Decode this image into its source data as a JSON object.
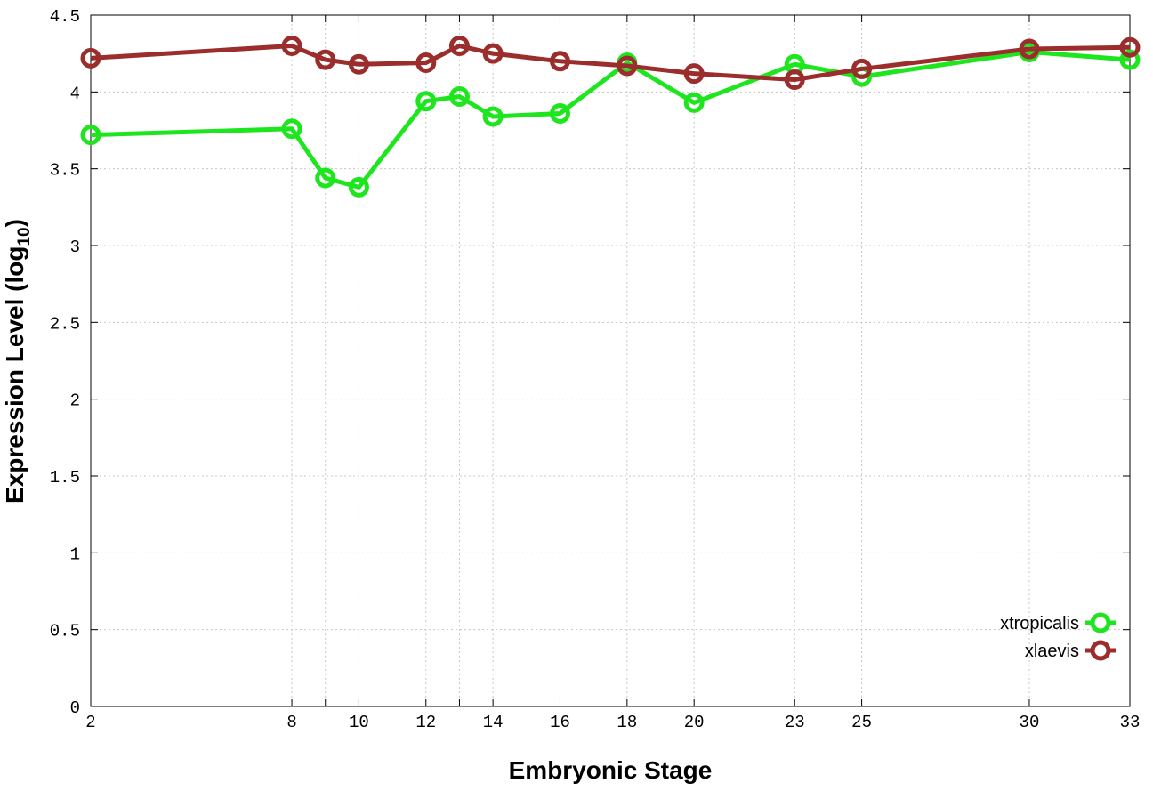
{
  "chart_data": {
    "type": "line",
    "xlabel": "Embryonic Stage",
    "ylabel_main": "Expression Level (log",
    "ylabel_sub": "10",
    "ylabel_close": ")",
    "x_categories": [
      "2",
      "8",
      "9",
      "10",
      "12",
      "13",
      "14",
      "16",
      "18",
      "20",
      "23",
      "25",
      "30",
      "33"
    ],
    "x_tick_labels": [
      "2",
      "8",
      "10",
      "12",
      "14",
      "16",
      "18",
      "20",
      "23",
      "25",
      "30",
      "33"
    ],
    "xlim": [
      2,
      33
    ],
    "ylim": [
      0,
      4.5
    ],
    "y_ticks": [
      0,
      0.5,
      1,
      1.5,
      2,
      2.5,
      3,
      3.5,
      4,
      4.5
    ],
    "y_tick_labels": [
      "0",
      "0.5",
      "1",
      "1.5",
      "2",
      "2.5",
      "3",
      "3.5",
      "4",
      "4.5"
    ],
    "grid": true,
    "legend_position": "bottom-right",
    "series": [
      {
        "name": "xtropicalis",
        "color": "#1ee61e",
        "x": [
          2,
          8,
          9,
          10,
          12,
          13,
          14,
          16,
          18,
          20,
          23,
          25,
          30,
          33
        ],
        "values": [
          3.72,
          3.76,
          3.44,
          3.38,
          3.94,
          3.97,
          3.84,
          3.86,
          4.19,
          3.93,
          4.18,
          4.1,
          4.26,
          4.21
        ]
      },
      {
        "name": "xlaevis",
        "color": "#9b2d2d",
        "x": [
          2,
          8,
          9,
          10,
          12,
          13,
          14,
          16,
          18,
          20,
          23,
          25,
          30,
          33
        ],
        "values": [
          4.22,
          4.3,
          4.21,
          4.18,
          4.19,
          4.3,
          4.25,
          4.2,
          4.17,
          4.12,
          4.08,
          4.15,
          4.28,
          4.29
        ]
      }
    ]
  }
}
